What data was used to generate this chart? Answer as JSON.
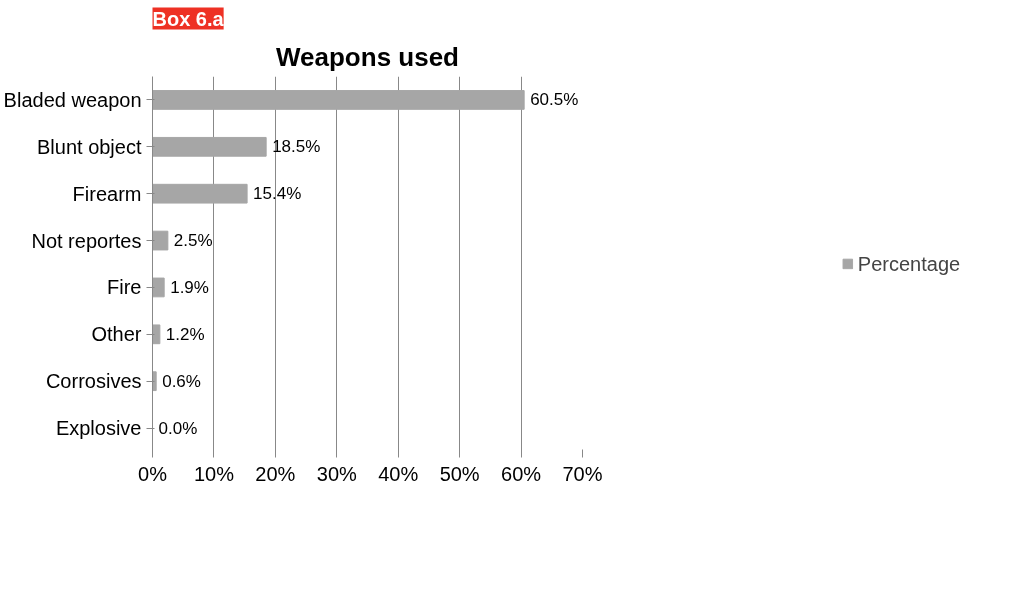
{
  "chart_data": {
    "type": "bar",
    "orientation": "horizontal",
    "title": "Weapons used",
    "annotations": [
      "Box 6.a"
    ],
    "categories": [
      "Bladed weapon",
      "Blunt object",
      "Firearm",
      "Not reportes",
      "Fire",
      "Other",
      "Corrosives",
      "Explosive"
    ],
    "series": [
      {
        "name": "Percentage",
        "color": "#a6a6a6",
        "values": [
          60.5,
          18.5,
          15.4,
          2.5,
          1.9,
          1.2,
          0.6,
          0.0
        ],
        "value_labels": [
          "60.5%",
          "18.5%",
          "15.4%",
          "2.5%",
          "1.9%",
          "1.2%",
          "0.6%",
          "0.0%"
        ]
      }
    ],
    "xlim": [
      0,
      70
    ],
    "xticks": [
      {
        "value": 0,
        "label": "0%"
      },
      {
        "value": 10,
        "label": "10%"
      },
      {
        "value": 20,
        "label": "20%"
      },
      {
        "value": 30,
        "label": "30%"
      },
      {
        "value": 40,
        "label": "40%"
      },
      {
        "value": 50,
        "label": "50%"
      },
      {
        "value": 60,
        "label": "60%"
      },
      {
        "value": 70,
        "label": "70%"
      }
    ],
    "grid": "x",
    "legend": "right"
  }
}
